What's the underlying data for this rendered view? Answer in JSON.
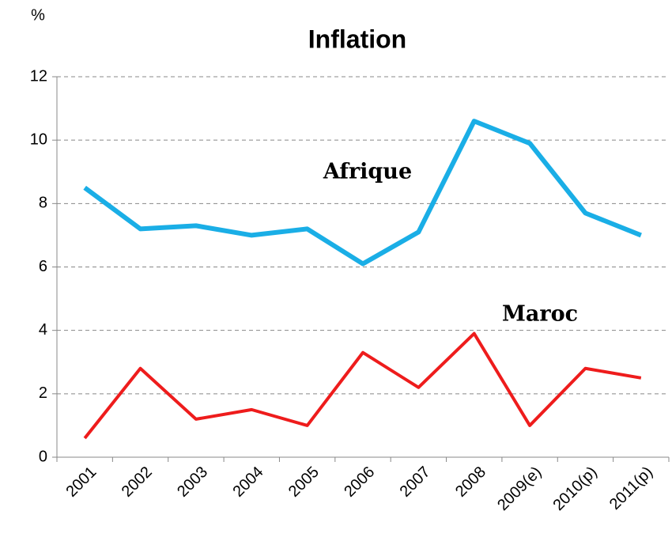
{
  "chart_data": {
    "type": "line",
    "title": "Inflation",
    "y_label": "%",
    "categories": [
      "2001",
      "2002",
      "2003",
      "2004",
      "2005",
      "2006",
      "2007",
      "2008",
      "2009(e)",
      "2010(p)",
      "2011(p)"
    ],
    "series": [
      {
        "name": "Afrique",
        "color": "#1aaee6",
        "values": [
          8.5,
          7.2,
          7.3,
          7.0,
          7.2,
          6.1,
          7.1,
          10.6,
          9.9,
          7.7,
          7.0
        ]
      },
      {
        "name": "Maroc",
        "color": "#ee1c1c",
        "values": [
          0.6,
          2.8,
          1.2,
          1.5,
          1.0,
          3.3,
          2.2,
          3.9,
          1.0,
          2.8,
          2.5
        ]
      }
    ],
    "ylim": [
      0,
      12
    ],
    "yticks": [
      0,
      2,
      4,
      6,
      8,
      10,
      12
    ],
    "grid": true
  }
}
